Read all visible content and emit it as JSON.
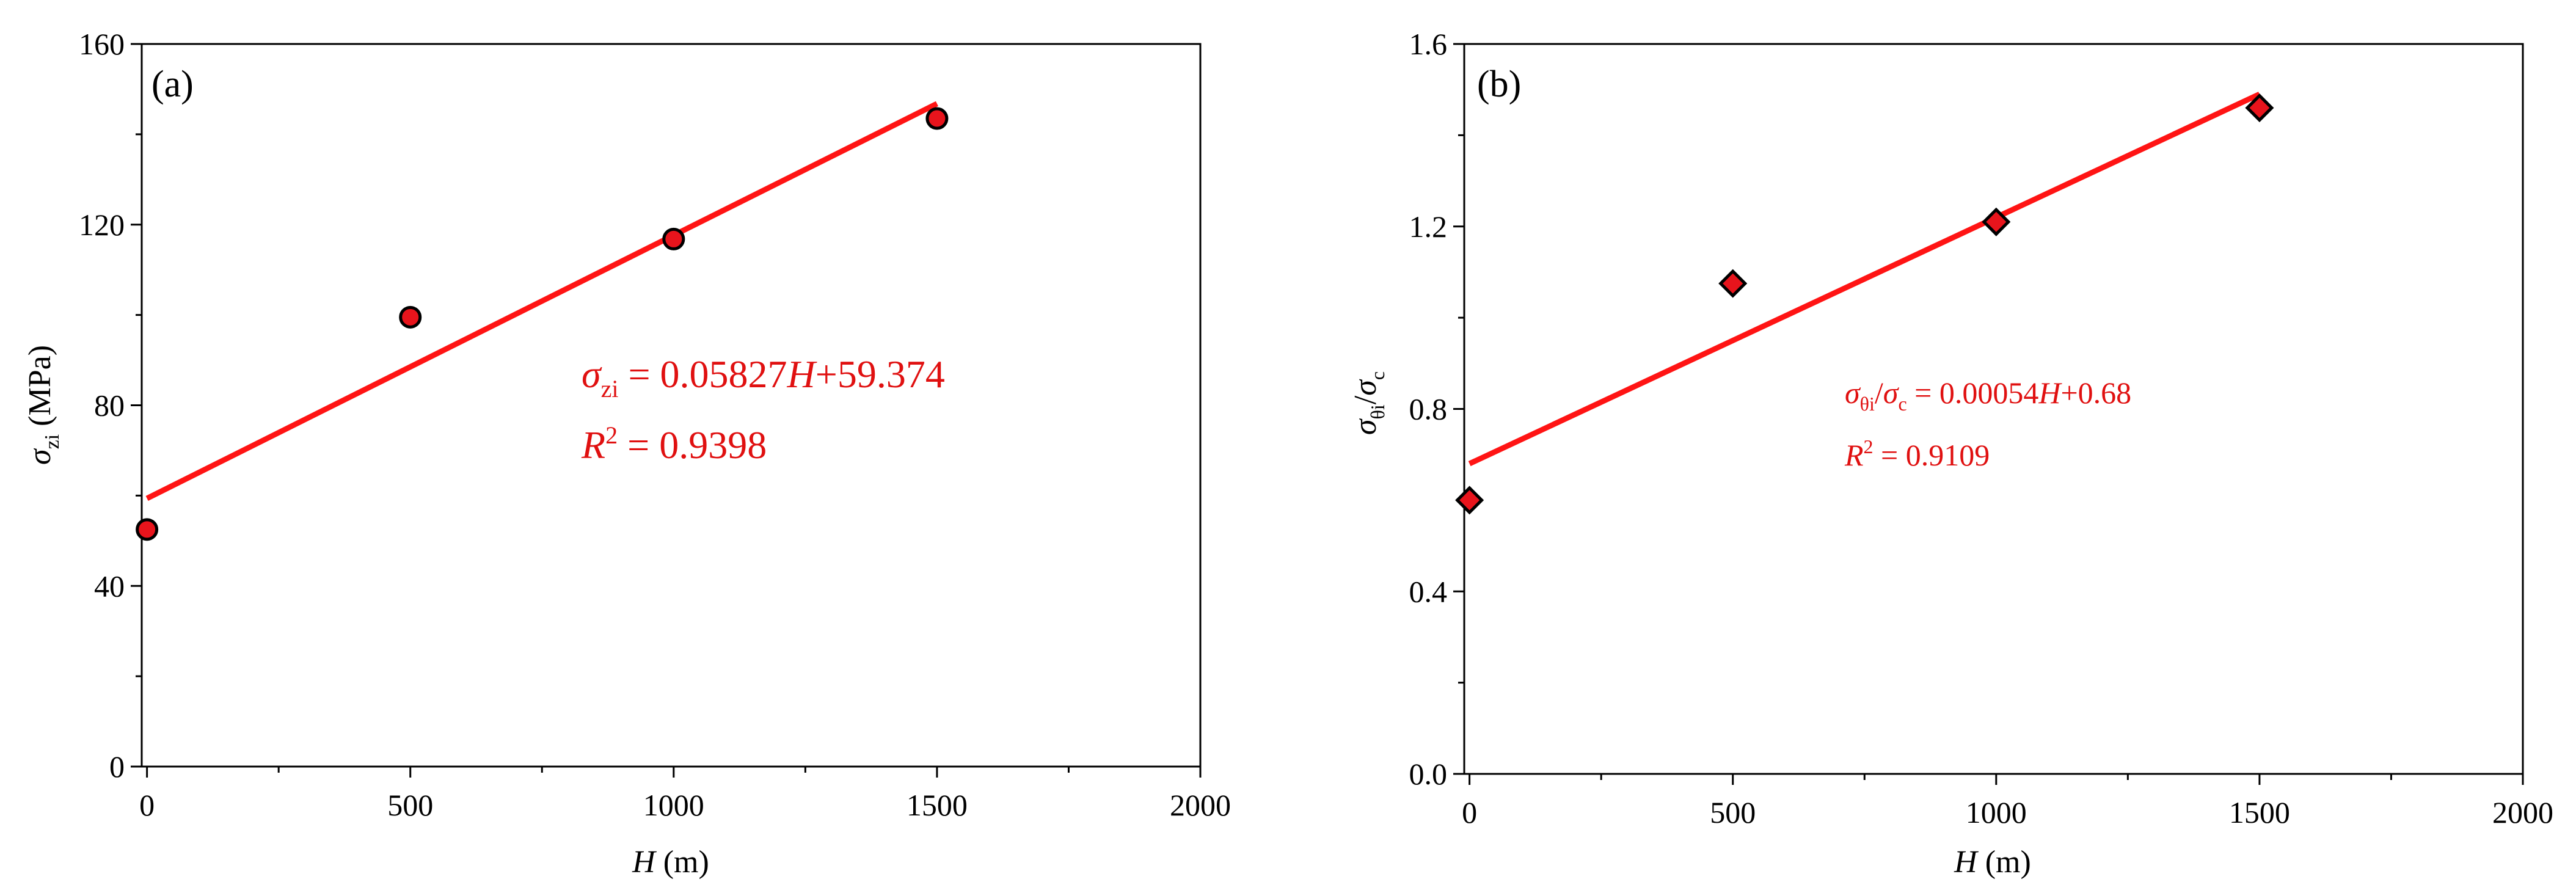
{
  "colors": {
    "fit_line": "#ff1414",
    "marker_fill": "#e8141c",
    "marker_edge": "#000000",
    "equation_text": "#e01010",
    "axes": "#000000"
  },
  "chart_data": [
    {
      "type": "scatter",
      "panel_label": "(a)",
      "marker": "circle",
      "x": [
        0,
        500,
        1000,
        1500
      ],
      "y": [
        52.5,
        99.5,
        116.8,
        143.5
      ],
      "fit": {
        "slope": 0.05827,
        "intercept": 59.374,
        "x_range": [
          0,
          1500
        ]
      },
      "xlim": [
        -10,
        2000
      ],
      "ylim": [
        0,
        160
      ],
      "xticks": [
        "0",
        "500",
        "1000",
        "1500",
        "2000"
      ],
      "yticks": [
        "0",
        "40",
        "80",
        "120",
        "160"
      ],
      "xlabel": {
        "var": "H",
        "unit": " (m)"
      },
      "ylabel": {
        "sym": "σ",
        "sub": "zi",
        "unit": " (MPa)"
      },
      "equation": {
        "sym": "σ",
        "sub": "zi",
        "rhs_a": " = 0.05827",
        "var": "H",
        "rhs_b": "+59.374",
        "r_sym": "R",
        "r_sup": "2",
        "r_rhs": " = 0.9398"
      }
    },
    {
      "type": "scatter",
      "panel_label": "(b)",
      "marker": "diamond",
      "x": [
        0,
        500,
        1000,
        1500
      ],
      "y": [
        0.6,
        1.075,
        1.21,
        1.46
      ],
      "fit": {
        "slope": 0.00054,
        "intercept": 0.68,
        "x_range": [
          0,
          1500
        ]
      },
      "xlim": [
        -10,
        2000
      ],
      "ylim": [
        0,
        1.6
      ],
      "xticks": [
        "0",
        "500",
        "1000",
        "1500",
        "2000"
      ],
      "yticks": [
        "0.0",
        "0.4",
        "0.8",
        "1.2",
        "1.6"
      ],
      "xlabel": {
        "var": "H",
        "unit": " (m)"
      },
      "ylabel": {
        "sym1": "σ",
        "sub1": "θi",
        "slash": "/",
        "sym2": "σ",
        "sub2": "c"
      },
      "equation": {
        "sym1": "σ",
        "sub1": "θi",
        "slash": "/",
        "sym2": "σ",
        "sub2": "c",
        "rhs_a": " = 0.00054",
        "var": "H",
        "rhs_b": "+0.68",
        "r_sym": "R",
        "r_sup": "2",
        "r_rhs": " = 0.9109"
      }
    }
  ]
}
